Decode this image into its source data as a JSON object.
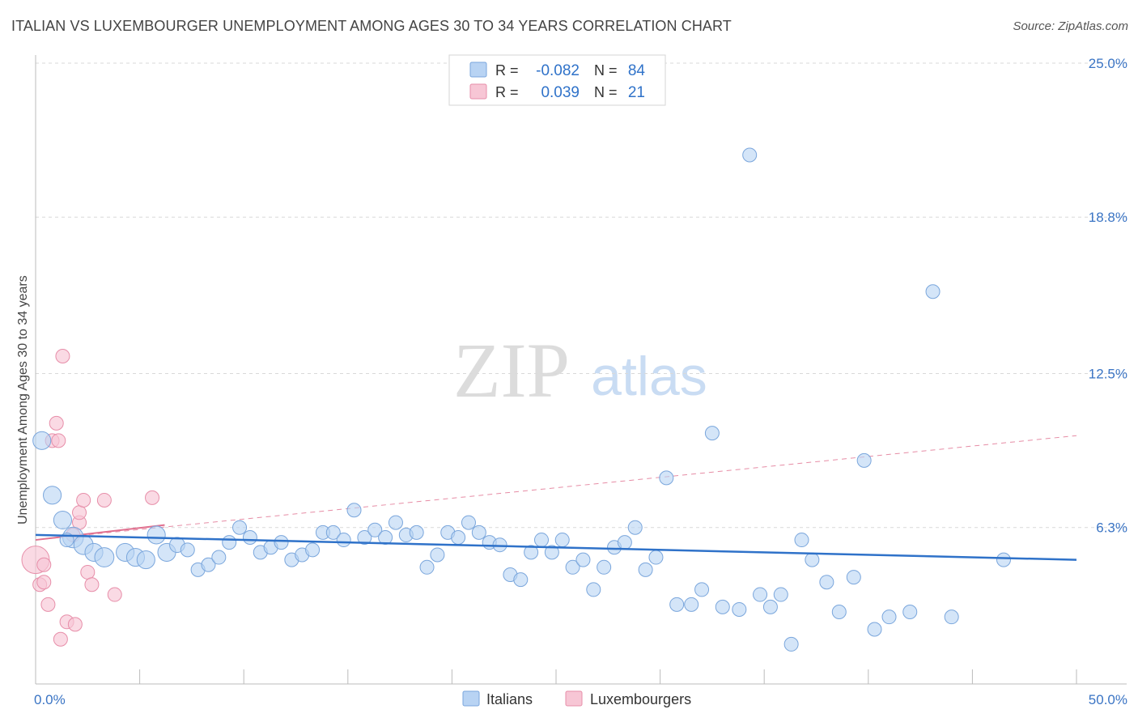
{
  "title": "ITALIAN VS LUXEMBOURGER UNEMPLOYMENT AMONG AGES 30 TO 34 YEARS CORRELATION CHART",
  "source": "Source: ZipAtlas.com",
  "watermark": {
    "zip": "ZIP",
    "atlas": "atlas"
  },
  "colors": {
    "blue_fill": "#b8d3f3",
    "blue_stroke": "#7aa6dc",
    "blue_line": "#2f72c9",
    "pink_fill": "#f7c6d5",
    "pink_stroke": "#e78ea9",
    "pink_line": "#e0708f",
    "axis_text": "#3a74c4",
    "grid": "#d9d9d9"
  },
  "legend": {
    "rows": [
      {
        "r_label": "R = ",
        "r_value": "-0.082",
        "n_label": "N = ",
        "n_value": "84",
        "series": "italians"
      },
      {
        "r_label": "R = ",
        "r_value": "0.039",
        "n_label": "N = ",
        "n_value": "21",
        "series": "luxembourgers"
      }
    ]
  },
  "bottom_legend": [
    {
      "label": "Italians"
    },
    {
      "label": "Luxembourgers"
    }
  ],
  "chart_data": {
    "type": "scatter",
    "title": "ITALIAN VS LUXEMBOURGER UNEMPLOYMENT AMONG AGES 30 TO 34 YEARS CORRELATION CHART",
    "xlabel": "",
    "ylabel": "Unemployment Among Ages 30 to 34 years",
    "xlim": [
      0,
      50
    ],
    "ylim": [
      0,
      25
    ],
    "x_tick_labels": [
      {
        "value": 0,
        "label": "0.0%"
      },
      {
        "value": 50,
        "label": "50.0%"
      }
    ],
    "y_tick_labels": [
      {
        "value": 6.3,
        "label": "6.3%"
      },
      {
        "value": 12.5,
        "label": "12.5%"
      },
      {
        "value": 18.8,
        "label": "18.8%"
      },
      {
        "value": 25.0,
        "label": "25.0%"
      }
    ],
    "series": [
      {
        "name": "Italians",
        "r": -0.082,
        "n": 84,
        "trend": {
          "x": [
            0,
            50
          ],
          "y": [
            6.0,
            5.0
          ]
        },
        "points": [
          {
            "x": 0.3,
            "y": 9.8,
            "s": 1.3
          },
          {
            "x": 0.8,
            "y": 7.6,
            "s": 1.3
          },
          {
            "x": 1.3,
            "y": 6.6,
            "s": 1.3
          },
          {
            "x": 1.8,
            "y": 5.9,
            "s": 1.5
          },
          {
            "x": 2.3,
            "y": 5.6,
            "s": 1.4
          },
          {
            "x": 2.8,
            "y": 5.3,
            "s": 1.3
          },
          {
            "x": 3.3,
            "y": 5.1,
            "s": 1.4
          },
          {
            "x": 4.3,
            "y": 5.3,
            "s": 1.3
          },
          {
            "x": 4.8,
            "y": 5.1,
            "s": 1.3
          },
          {
            "x": 5.3,
            "y": 5.0,
            "s": 1.3
          },
          {
            "x": 5.8,
            "y": 6.0,
            "s": 1.3
          },
          {
            "x": 6.3,
            "y": 5.3,
            "s": 1.3
          },
          {
            "x": 6.8,
            "y": 5.6,
            "s": 1.1
          },
          {
            "x": 7.3,
            "y": 5.4,
            "s": 1.0
          },
          {
            "x": 7.8,
            "y": 4.6,
            "s": 1.0
          },
          {
            "x": 8.3,
            "y": 4.8,
            "s": 1.0
          },
          {
            "x": 8.8,
            "y": 5.1,
            "s": 1.0
          },
          {
            "x": 9.3,
            "y": 5.7,
            "s": 1.0
          },
          {
            "x": 9.8,
            "y": 6.3,
            "s": 1.0
          },
          {
            "x": 10.3,
            "y": 5.9,
            "s": 1.0
          },
          {
            "x": 10.8,
            "y": 5.3,
            "s": 1.0
          },
          {
            "x": 11.3,
            "y": 5.5,
            "s": 1.0
          },
          {
            "x": 11.8,
            "y": 5.7,
            "s": 1.0
          },
          {
            "x": 12.3,
            "y": 5.0,
            "s": 1.0
          },
          {
            "x": 12.8,
            "y": 5.2,
            "s": 1.0
          },
          {
            "x": 13.3,
            "y": 5.4,
            "s": 1.0
          },
          {
            "x": 13.8,
            "y": 6.1,
            "s": 1.0
          },
          {
            "x": 14.3,
            "y": 6.1,
            "s": 1.0
          },
          {
            "x": 14.8,
            "y": 5.8,
            "s": 1.0
          },
          {
            "x": 15.3,
            "y": 7.0,
            "s": 1.0
          },
          {
            "x": 15.8,
            "y": 5.9,
            "s": 1.0
          },
          {
            "x": 16.3,
            "y": 6.2,
            "s": 1.0
          },
          {
            "x": 16.8,
            "y": 5.9,
            "s": 1.0
          },
          {
            "x": 17.3,
            "y": 6.5,
            "s": 1.0
          },
          {
            "x": 17.8,
            "y": 6.0,
            "s": 1.0
          },
          {
            "x": 18.3,
            "y": 6.1,
            "s": 1.0
          },
          {
            "x": 18.8,
            "y": 4.7,
            "s": 1.0
          },
          {
            "x": 19.3,
            "y": 5.2,
            "s": 1.0
          },
          {
            "x": 19.8,
            "y": 6.1,
            "s": 1.0
          },
          {
            "x": 20.3,
            "y": 5.9,
            "s": 1.0
          },
          {
            "x": 20.8,
            "y": 6.5,
            "s": 1.0
          },
          {
            "x": 21.3,
            "y": 6.1,
            "s": 1.0
          },
          {
            "x": 21.8,
            "y": 5.7,
            "s": 1.0
          },
          {
            "x": 22.3,
            "y": 5.6,
            "s": 1.0
          },
          {
            "x": 22.8,
            "y": 4.4,
            "s": 1.0
          },
          {
            "x": 23.3,
            "y": 4.2,
            "s": 1.0
          },
          {
            "x": 23.8,
            "y": 5.3,
            "s": 1.0
          },
          {
            "x": 24.3,
            "y": 5.8,
            "s": 1.0
          },
          {
            "x": 24.8,
            "y": 5.3,
            "s": 1.0
          },
          {
            "x": 25.3,
            "y": 5.8,
            "s": 1.0
          },
          {
            "x": 25.8,
            "y": 4.7,
            "s": 1.0
          },
          {
            "x": 26.3,
            "y": 5.0,
            "s": 1.0
          },
          {
            "x": 26.8,
            "y": 3.8,
            "s": 1.0
          },
          {
            "x": 27.3,
            "y": 4.7,
            "s": 1.0
          },
          {
            "x": 27.8,
            "y": 5.5,
            "s": 1.0
          },
          {
            "x": 28.3,
            "y": 5.7,
            "s": 1.0
          },
          {
            "x": 28.8,
            "y": 6.3,
            "s": 1.0
          },
          {
            "x": 29.3,
            "y": 4.6,
            "s": 1.0
          },
          {
            "x": 29.8,
            "y": 5.1,
            "s": 1.0
          },
          {
            "x": 30.3,
            "y": 8.3,
            "s": 1.0
          },
          {
            "x": 30.8,
            "y": 3.2,
            "s": 1.0
          },
          {
            "x": 31.5,
            "y": 3.2,
            "s": 1.0
          },
          {
            "x": 32.0,
            "y": 3.8,
            "s": 1.0
          },
          {
            "x": 32.5,
            "y": 10.1,
            "s": 1.0
          },
          {
            "x": 33.0,
            "y": 3.1,
            "s": 1.0
          },
          {
            "x": 33.8,
            "y": 3.0,
            "s": 1.0
          },
          {
            "x": 34.3,
            "y": 21.3,
            "s": 1.0
          },
          {
            "x": 34.8,
            "y": 3.6,
            "s": 1.0
          },
          {
            "x": 35.3,
            "y": 3.1,
            "s": 1.0
          },
          {
            "x": 35.8,
            "y": 3.6,
            "s": 1.0
          },
          {
            "x": 36.3,
            "y": 1.6,
            "s": 1.0
          },
          {
            "x": 36.8,
            "y": 5.8,
            "s": 1.0
          },
          {
            "x": 37.3,
            "y": 5.0,
            "s": 1.0
          },
          {
            "x": 38.0,
            "y": 4.1,
            "s": 1.0
          },
          {
            "x": 38.6,
            "y": 2.9,
            "s": 1.0
          },
          {
            "x": 39.3,
            "y": 4.3,
            "s": 1.0
          },
          {
            "x": 39.8,
            "y": 9.0,
            "s": 1.0
          },
          {
            "x": 40.3,
            "y": 2.2,
            "s": 1.0
          },
          {
            "x": 41.0,
            "y": 2.7,
            "s": 1.0
          },
          {
            "x": 42.0,
            "y": 2.9,
            "s": 1.0
          },
          {
            "x": 43.1,
            "y": 15.8,
            "s": 1.0
          },
          {
            "x": 44.0,
            "y": 2.7,
            "s": 1.0
          },
          {
            "x": 46.5,
            "y": 5.0,
            "s": 1.0
          },
          {
            "x": 1.5,
            "y": 5.8,
            "s": 1.0
          }
        ]
      },
      {
        "name": "Luxembourgers",
        "r": 0.039,
        "n": 21,
        "trend_solid": {
          "x": [
            0,
            6.2
          ],
          "y": [
            5.8,
            6.4
          ]
        },
        "trend_dashed": {
          "x": [
            0,
            50
          ],
          "y": [
            5.8,
            10.0
          ]
        },
        "points": [
          {
            "x": 0.0,
            "y": 5.0,
            "s": 2.0
          },
          {
            "x": 0.2,
            "y": 4.0,
            "s": 1.0
          },
          {
            "x": 0.4,
            "y": 4.8,
            "s": 1.0
          },
          {
            "x": 0.4,
            "y": 4.1,
            "s": 1.0
          },
          {
            "x": 0.6,
            "y": 3.2,
            "s": 1.0
          },
          {
            "x": 0.8,
            "y": 9.8,
            "s": 1.0
          },
          {
            "x": 1.0,
            "y": 10.5,
            "s": 1.0
          },
          {
            "x": 1.1,
            "y": 9.8,
            "s": 1.0
          },
          {
            "x": 1.2,
            "y": 1.8,
            "s": 1.0
          },
          {
            "x": 1.3,
            "y": 13.2,
            "s": 1.0
          },
          {
            "x": 1.5,
            "y": 2.5,
            "s": 1.0
          },
          {
            "x": 1.9,
            "y": 2.4,
            "s": 1.0
          },
          {
            "x": 2.1,
            "y": 6.5,
            "s": 1.0
          },
          {
            "x": 2.1,
            "y": 6.9,
            "s": 1.0
          },
          {
            "x": 2.3,
            "y": 7.4,
            "s": 1.0
          },
          {
            "x": 2.5,
            "y": 4.5,
            "s": 1.0
          },
          {
            "x": 2.7,
            "y": 4.0,
            "s": 1.0
          },
          {
            "x": 3.3,
            "y": 7.4,
            "s": 1.0
          },
          {
            "x": 3.8,
            "y": 3.6,
            "s": 1.0
          },
          {
            "x": 5.6,
            "y": 7.5,
            "s": 1.0
          },
          {
            "x": 1.8,
            "y": 6.0,
            "s": 1.0
          }
        ]
      }
    ]
  }
}
